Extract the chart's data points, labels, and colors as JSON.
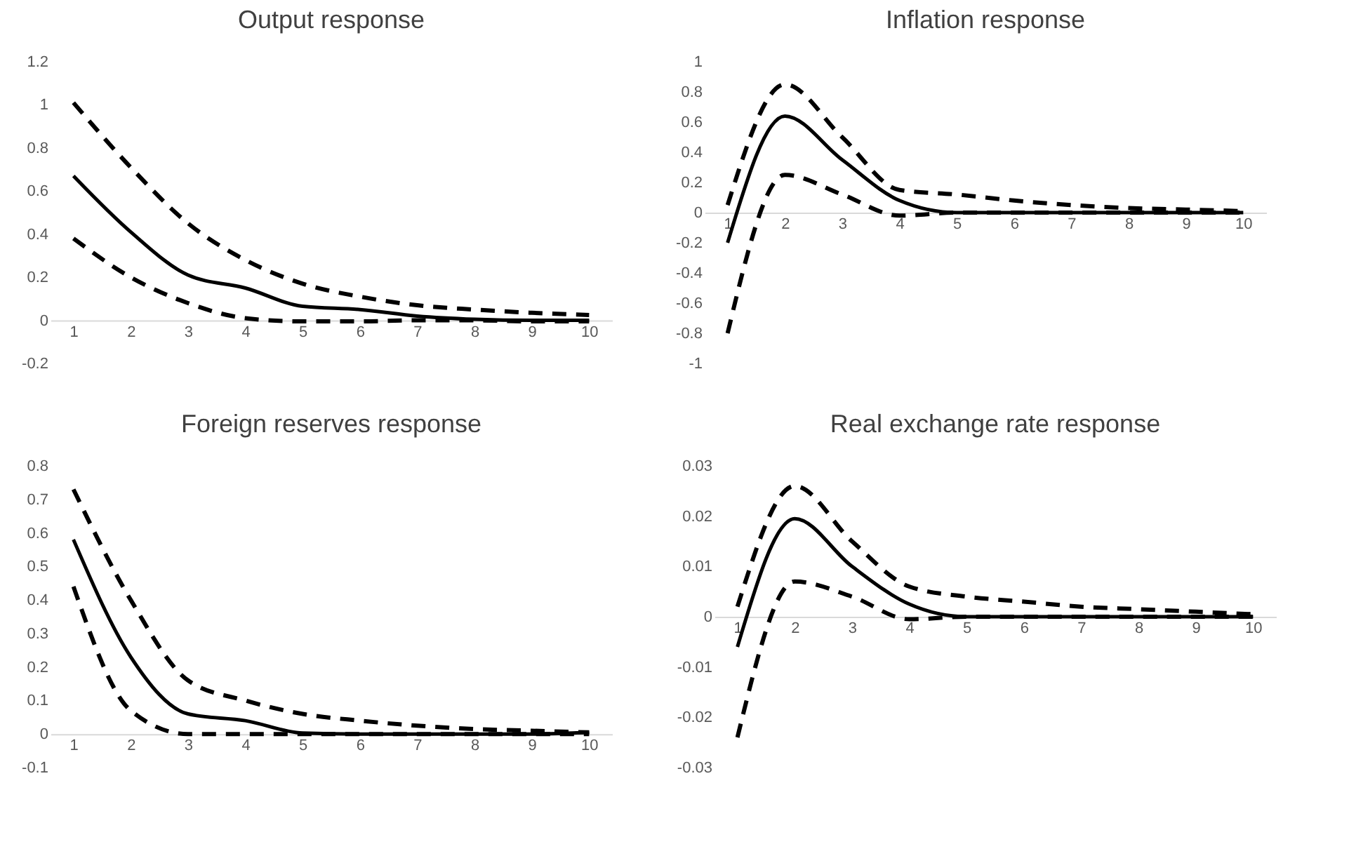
{
  "chart_data": [
    {
      "type": "line",
      "title": "Output response",
      "categories": [
        "1",
        "2",
        "3",
        "4",
        "5",
        "6",
        "7",
        "8",
        "9",
        "10"
      ],
      "ylim": [
        -0.2,
        1.2
      ],
      "yticks": [
        -0.2,
        0,
        0.2,
        0.4,
        0.6,
        0.8,
        1,
        1.2
      ],
      "grid": false,
      "series": [
        {
          "color": "#000000",
          "line_style": "dashed",
          "values": [
            1.01,
            0.71,
            0.45,
            0.28,
            0.17,
            0.11,
            0.07,
            0.05,
            0.035,
            0.025
          ]
        },
        {
          "color": "#000000",
          "line_style": "solid",
          "values": [
            0.67,
            0.41,
            0.21,
            0.15,
            0.065,
            0.05,
            0.02,
            0.005,
            0,
            0
          ]
        },
        {
          "color": "#000000",
          "line_style": "dashed",
          "values": [
            0.38,
            0.2,
            0.08,
            0.01,
            -0.005,
            -0.005,
            0,
            0,
            -0.005,
            -0.005
          ]
        }
      ]
    },
    {
      "type": "line",
      "title": "Inflation response",
      "categories": [
        "1",
        "2",
        "3",
        "4",
        "5",
        "6",
        "7",
        "8",
        "9",
        "10"
      ],
      "ylim": [
        -1,
        1
      ],
      "yticks": [
        -1,
        -0.8,
        -0.6,
        -0.4,
        -0.2,
        0,
        0.2,
        0.4,
        0.6,
        0.8,
        1
      ],
      "grid": false,
      "series": [
        {
          "color": "#000000",
          "line_style": "dashed",
          "values": [
            0.05,
            0.85,
            0.5,
            0.15,
            0.12,
            0.08,
            0.05,
            0.03,
            0.02,
            0.01
          ]
        },
        {
          "color": "#000000",
          "line_style": "solid",
          "values": [
            -0.2,
            0.64,
            0.35,
            0.08,
            0,
            0,
            0,
            0,
            0,
            0
          ]
        },
        {
          "color": "#000000",
          "line_style": "dashed",
          "values": [
            -0.8,
            0.25,
            0.12,
            -0.02,
            0,
            0,
            0,
            0,
            0,
            0
          ]
        }
      ]
    },
    {
      "type": "line",
      "title": "Foreign reserves response",
      "categories": [
        "1",
        "2",
        "3",
        "4",
        "5",
        "6",
        "7",
        "8",
        "9",
        "10"
      ],
      "ylim": [
        -0.1,
        0.8
      ],
      "yticks": [
        -0.1,
        0,
        0.1,
        0.2,
        0.3,
        0.4,
        0.5,
        0.6,
        0.7,
        0.8
      ],
      "grid": false,
      "series": [
        {
          "color": "#000000",
          "line_style": "dashed",
          "values": [
            0.73,
            0.4,
            0.16,
            0.1,
            0.06,
            0.04,
            0.025,
            0.015,
            0.01,
            0.005
          ]
        },
        {
          "color": "#000000",
          "line_style": "solid",
          "values": [
            0.58,
            0.23,
            0.06,
            0.04,
            0.003,
            0,
            0,
            0,
            0,
            0.005
          ]
        },
        {
          "color": "#000000",
          "line_style": "dashed",
          "values": [
            0.44,
            0.07,
            0,
            0,
            0,
            0,
            0,
            0,
            0,
            0
          ]
        }
      ]
    },
    {
      "type": "line",
      "title": "Real exchange rate response",
      "categories": [
        "1",
        "2",
        "3",
        "4",
        "5",
        "6",
        "7",
        "8",
        "9",
        "10"
      ],
      "ylim": [
        -0.03,
        0.03
      ],
      "yticks": [
        -0.03,
        -0.02,
        -0.01,
        0,
        0.01,
        0.02,
        0.03
      ],
      "grid": false,
      "series": [
        {
          "color": "#000000",
          "line_style": "dashed",
          "values": [
            0.002,
            0.026,
            0.015,
            0.006,
            0.004,
            0.003,
            0.002,
            0.0015,
            0.001,
            0.0005
          ]
        },
        {
          "color": "#000000",
          "line_style": "solid",
          "values": [
            -0.006,
            0.0195,
            0.01,
            0.0025,
            0,
            0,
            0,
            0,
            0,
            0
          ]
        },
        {
          "color": "#000000",
          "line_style": "dashed",
          "values": [
            -0.024,
            0.007,
            0.004,
            -0.0005,
            0,
            0,
            0,
            0,
            0,
            0
          ]
        }
      ]
    }
  ]
}
